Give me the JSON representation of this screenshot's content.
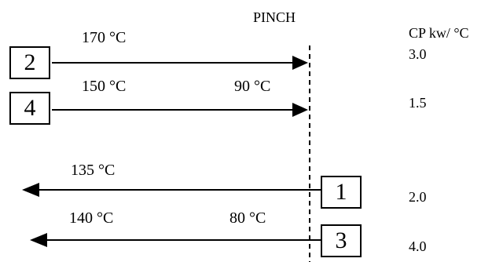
{
  "pinch_label": "PINCH",
  "cp_header": "CP kw/   °C",
  "streams": [
    {
      "id": "2",
      "start_temp": "170 °C",
      "end_temp": "",
      "cp": "3.0",
      "direction": "right"
    },
    {
      "id": "4",
      "start_temp": "150 °C",
      "end_temp": "90 °C",
      "cp": "1.5",
      "direction": "right"
    },
    {
      "id": "1",
      "start_temp": "",
      "end_temp": "135 °C",
      "cp": "2.0",
      "direction": "left"
    },
    {
      "id": "3",
      "start_temp": "80 °C",
      "end_temp": "140 °C",
      "cp": "4.0",
      "direction": "left"
    }
  ]
}
